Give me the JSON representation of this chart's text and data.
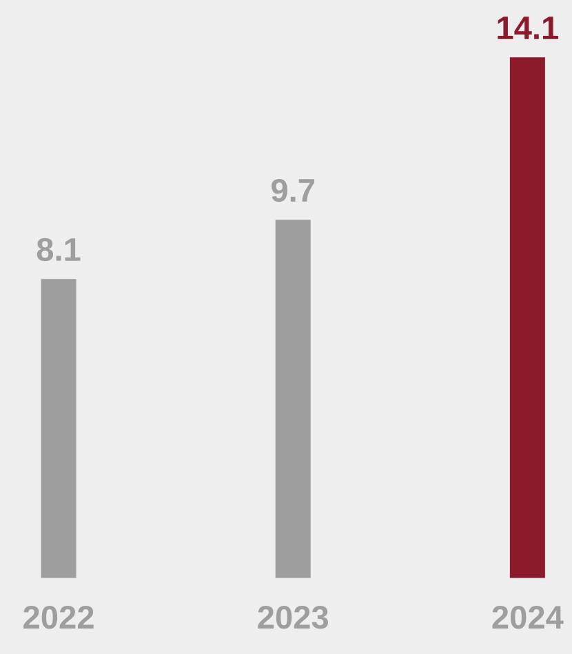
{
  "chart_data": {
    "type": "bar",
    "categories": [
      "2022",
      "2023",
      "2024"
    ],
    "values": [
      8.1,
      9.7,
      14.1
    ],
    "colors": [
      "#9e9e9e",
      "#9e9e9e",
      "#8b1a2b"
    ],
    "data_labels": true,
    "tick_labels": "x",
    "grid": false,
    "legend": false
  }
}
